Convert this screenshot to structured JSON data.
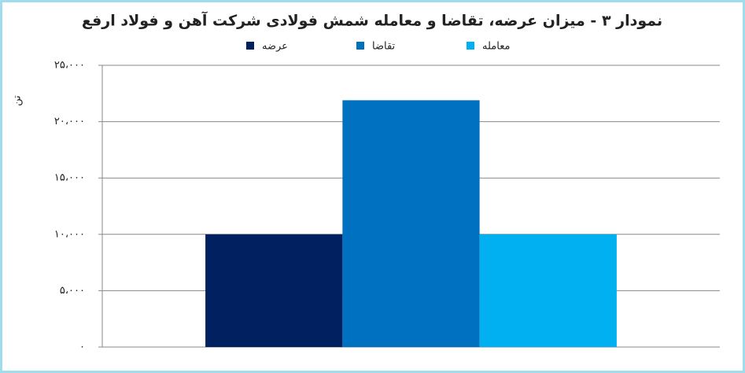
{
  "chart_data": {
    "type": "bar",
    "title": "نمودار ۳ - میزان عرضه، تقاضا و معامله شمش فولادی شرکت آهن و فولاد ارفع",
    "y_label": "تن",
    "categories": [
      null
    ],
    "series": [
      {
        "name": "عرضه",
        "color": "#002060",
        "values": [
          10000
        ]
      },
      {
        "name": "تقاضا",
        "color": "#0070c0",
        "values": [
          21900
        ]
      },
      {
        "name": "معامله",
        "color": "#00b0f0",
        "values": [
          10000
        ]
      }
    ],
    "ylim": [
      0,
      25000
    ],
    "yticks": [
      {
        "value": 0,
        "label": "۰"
      },
      {
        "value": 5000,
        "label": "۵،۰۰۰"
      },
      {
        "value": 10000,
        "label": "۱۰،۰۰۰"
      },
      {
        "value": 15000,
        "label": "۱۵،۰۰۰"
      },
      {
        "value": 20000,
        "label": "۲۰،۰۰۰"
      },
      {
        "value": 25000,
        "label": "۲۵،۰۰۰"
      }
    ],
    "grid": true,
    "legend": "top"
  }
}
